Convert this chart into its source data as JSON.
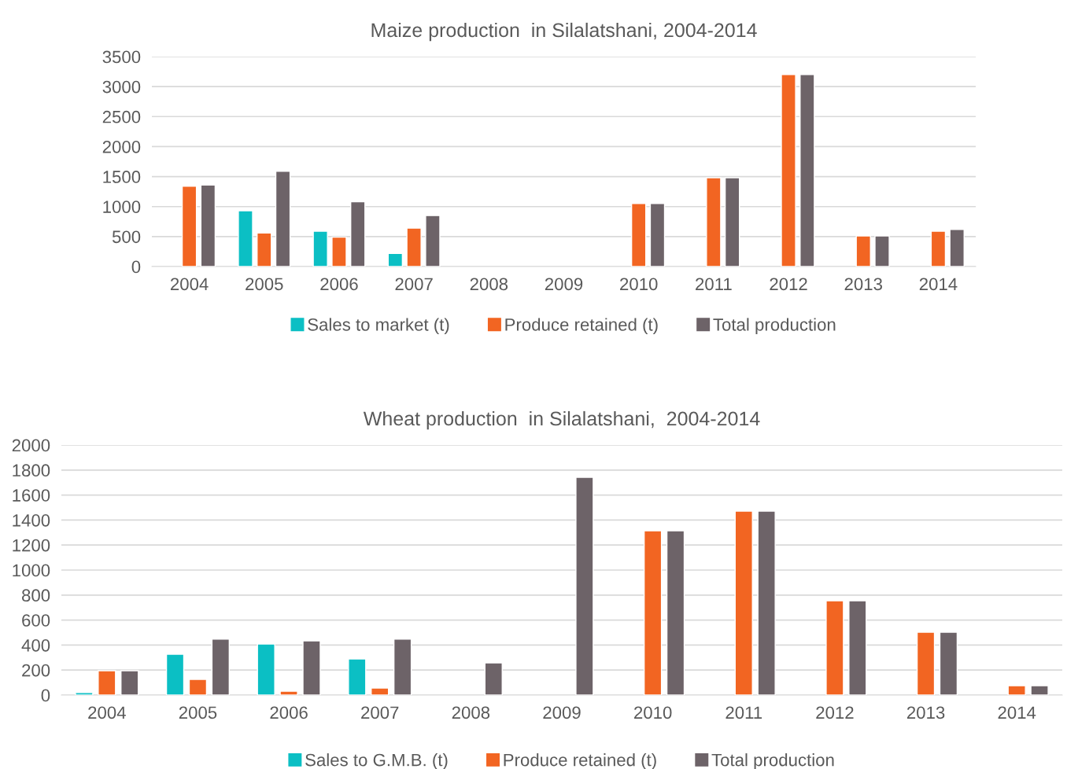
{
  "chart_data": [
    {
      "type": "bar",
      "title": "Maize production  in Silalatshani, 2004-2014",
      "categories": [
        "2004",
        "2005",
        "2006",
        "2007",
        "2008",
        "2009",
        "2010",
        "2011",
        "2012",
        "2013",
        "2014"
      ],
      "series": [
        {
          "name": "Sales to market (t)",
          "color": "#0bbfc4",
          "values": [
            null,
            930,
            590,
            220,
            null,
            null,
            null,
            null,
            null,
            null,
            null
          ]
        },
        {
          "name": "Produce retained (t)",
          "color": "#f26522",
          "values": [
            1340,
            560,
            490,
            640,
            null,
            null,
            1050,
            1480,
            3200,
            510,
            590
          ]
        },
        {
          "name": "Total production",
          "color": "#6d6368",
          "values": [
            1360,
            1590,
            1080,
            850,
            null,
            null,
            1050,
            1480,
            3200,
            510,
            620
          ]
        }
      ],
      "ylim": [
        0,
        3500
      ],
      "yticks": [
        0,
        500,
        1000,
        1500,
        2000,
        2500,
        3000,
        3500
      ],
      "grid": "y",
      "legend": "bottom"
    },
    {
      "type": "bar",
      "title": "Wheat production  in Silalatshani,  2004-2014",
      "categories": [
        "2004",
        "2005",
        "2006",
        "2007",
        "2008",
        "2009",
        "2010",
        "2011",
        "2012",
        "2013",
        "2014"
      ],
      "series": [
        {
          "name": "Sales to G.M.B. (t)",
          "color": "#0bbfc4",
          "values": [
            20,
            327,
            409,
            289,
            null,
            null,
            null,
            null,
            null,
            null,
            null
          ]
        },
        {
          "name": "Produce retained (t)",
          "color": "#f26522",
          "values": [
            195,
            126,
            31,
            57,
            null,
            null,
            1314,
            1472,
            755,
            503,
            75
          ]
        },
        {
          "name": "Total production",
          "color": "#6d6368",
          "values": [
            195,
            447,
            434,
            447,
            258,
            1742,
            1314,
            1472,
            755,
            503,
            75
          ]
        }
      ],
      "ylim": [
        0,
        2000
      ],
      "yticks": [
        0,
        200,
        400,
        600,
        800,
        1000,
        1200,
        1400,
        1600,
        1800,
        2000
      ],
      "grid": "y",
      "legend": "bottom"
    }
  ]
}
